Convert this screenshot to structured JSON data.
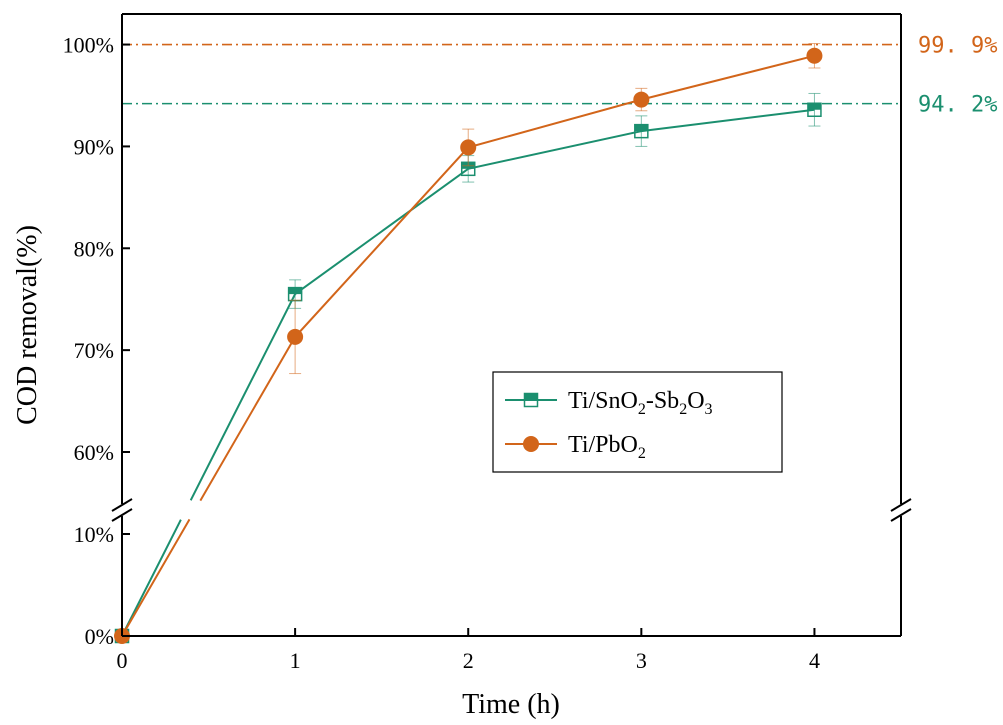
{
  "chart_data": {
    "type": "line",
    "xlabel": "Time (h)",
    "ylabel": "COD removal(%)",
    "xlim": [
      0,
      4.5
    ],
    "x_ticks": [
      0,
      1,
      2,
      3,
      4
    ],
    "x_tick_labels": [
      "0",
      "1",
      "2",
      "3",
      "4"
    ],
    "y_axis_break": {
      "lower_range": [
        0,
        12
      ],
      "upper_range": [
        55,
        103
      ]
    },
    "y_ticks": [
      0,
      10,
      60,
      70,
      80,
      90,
      100
    ],
    "y_tick_labels": [
      "0%",
      "10%",
      "60%",
      "70%",
      "80%",
      "90%",
      "100%"
    ],
    "grid": false,
    "legend_position": "center-right",
    "series": [
      {
        "name": "Ti/SnO2-Sb2O3",
        "name_main": "Ti/SnO",
        "name_sub1": "2",
        "name_mid": "-Sb",
        "name_sub2": "2",
        "name_o": "O",
        "name_sub3": "3",
        "color": "#1b8f6f",
        "marker": "half-filled-square",
        "x": [
          0,
          1,
          2,
          3,
          4
        ],
        "y": [
          0,
          75.5,
          87.8,
          91.5,
          93.6
        ],
        "error": [
          0,
          1.4,
          1.3,
          1.5,
          1.6
        ]
      },
      {
        "name": "Ti/PbO2",
        "name_main": "Ti/PbO",
        "name_sub1": "2",
        "color": "#d2651a",
        "marker": "circle",
        "x": [
          0,
          1,
          2,
          3,
          4
        ],
        "y": [
          0,
          71.3,
          89.9,
          94.6,
          98.9
        ],
        "error": [
          0,
          3.6,
          1.8,
          1.1,
          1.2
        ]
      }
    ],
    "reference_lines": [
      {
        "y": 100,
        "label": "99.9%",
        "label_spaced": "99. 9%",
        "color": "#d2651a",
        "style": "dash-dot"
      },
      {
        "y": 94.2,
        "label": "94.2%",
        "label_spaced": "94. 2%",
        "color": "#1b8f6f",
        "style": "dash-dot"
      }
    ]
  }
}
